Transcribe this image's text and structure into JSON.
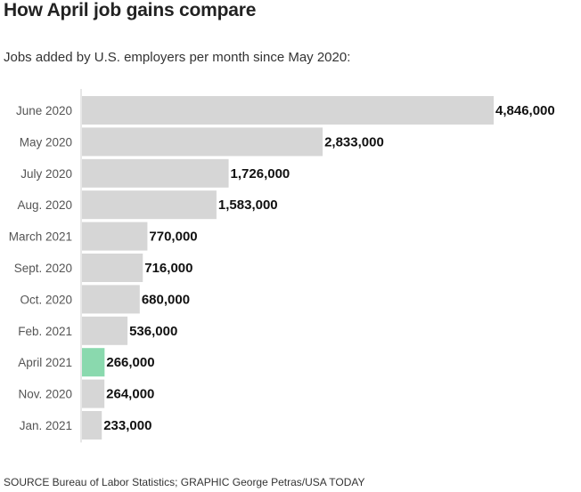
{
  "title": "How April job gains compare",
  "subtitle": "Jobs added by U.S. employers per month since May 2020:",
  "source": "SOURCE Bureau of Labor Statistics; GRAPHIC George Petras/USA TODAY",
  "colors": {
    "bar": "#d6d6d6",
    "highlight": "#8ad9ae",
    "axis": "#cfcfcf"
  },
  "chart_data": {
    "type": "bar",
    "orientation": "horizontal",
    "categories": [
      "June 2020",
      "May 2020",
      "July 2020",
      "Aug. 2020",
      "March 2021",
      "Sept. 2020",
      "Oct. 2020",
      "Feb. 2021",
      "April 2021",
      "Nov. 2020",
      "Jan. 2021"
    ],
    "values": [
      4846000,
      2833000,
      1726000,
      1583000,
      770000,
      716000,
      680000,
      536000,
      266000,
      264000,
      233000
    ],
    "value_labels": [
      "4,846,000",
      "2,833,000",
      "1,726,000",
      "1,583,000",
      "770,000",
      "716,000",
      "680,000",
      "536,000",
      "266,000",
      "264,000",
      "233,000"
    ],
    "highlight": "April 2021",
    "xlim": [
      0,
      4846000
    ],
    "grid": false,
    "legend": "none"
  }
}
